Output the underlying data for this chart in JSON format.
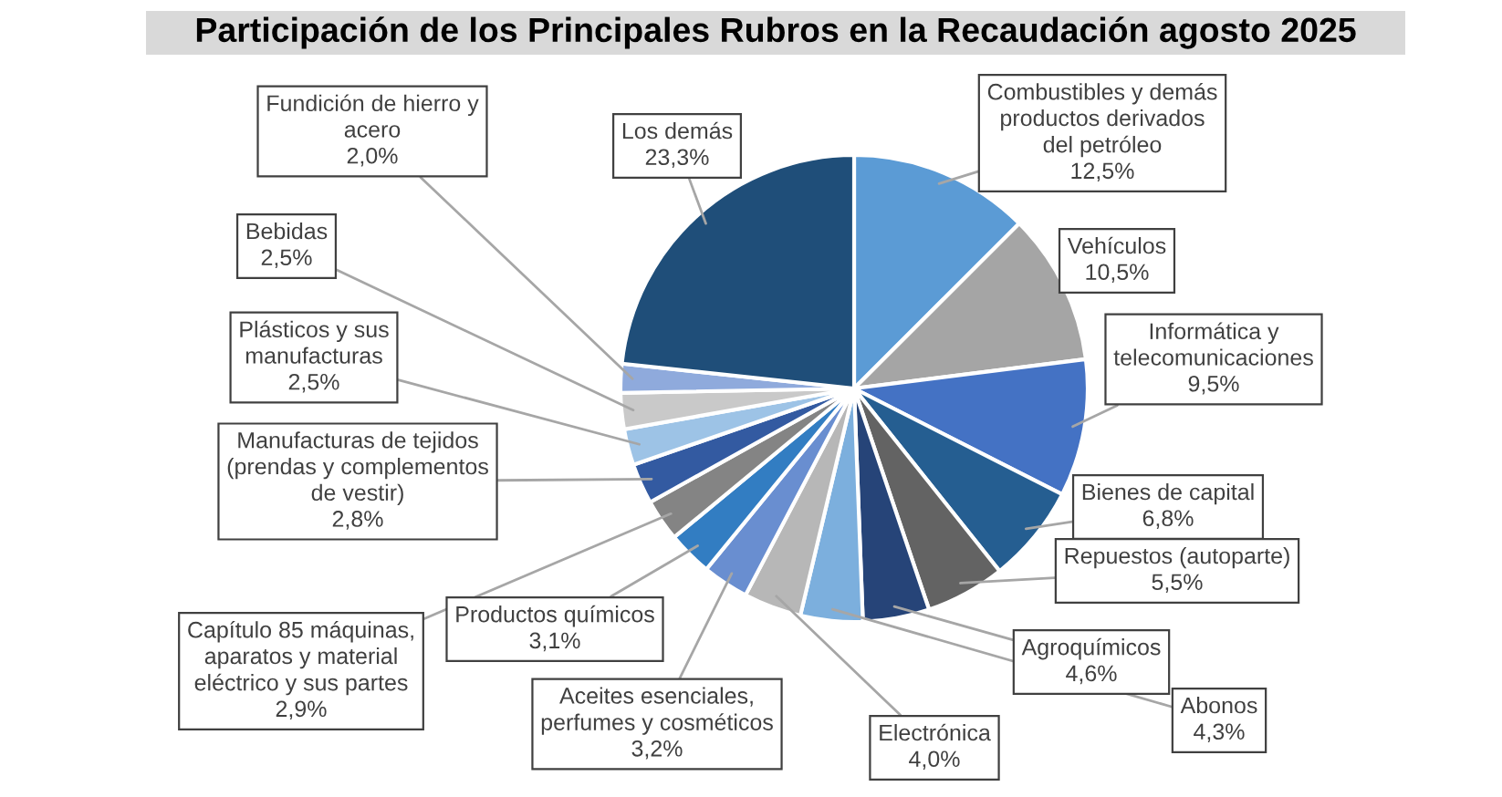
{
  "chart_data": {
    "type": "pie",
    "title": "Participación de los Principales Rubros en la Recaudación agosto 2025",
    "categories": [
      "Combustibles y demás\nproductos derivados\ndel petróleo",
      "Vehículos",
      "Informática y\ntelecomunicaciones",
      "Bienes de capital",
      "Repuestos (autoparte)",
      "Agroquímicos",
      "Abonos",
      "Electrónica",
      "Aceites esenciales,\nperfumes y cosméticos",
      "Productos químicos",
      "Capítulo 85 máquinas,\naparatos y material\neléctrico y sus partes",
      "Manufacturas de tejidos\n(prendas y complementos\nde vestir)",
      "Plásticos y sus\nmanufacturas",
      "Bebidas",
      "Fundición de hierro y\nacero",
      "Los demás"
    ],
    "values": [
      12.5,
      10.5,
      9.5,
      6.8,
      5.5,
      4.6,
      4.3,
      4.0,
      3.2,
      3.1,
      2.9,
      2.8,
      2.5,
      2.5,
      2.0,
      23.3
    ],
    "value_labels": [
      "12,5%",
      "10,5%",
      "9,5%",
      "6,8%",
      "5,5%",
      "4,6%",
      "4,3%",
      "4,0%",
      "3,2%",
      "3,1%",
      "2,9%",
      "2,8%",
      "2,5%",
      "2,5%",
      "2,0%",
      "23,3%"
    ],
    "colors": [
      "#5b9bd5",
      "#a5a5a5",
      "#4472c4",
      "#255e91",
      "#636363",
      "#264478",
      "#7cafdd",
      "#b7b7b7",
      "#698ed0",
      "#327dc2",
      "#848484",
      "#335aa1",
      "#9dc3e6",
      "#c9c9c9",
      "#8faadc",
      "#1f4e79"
    ],
    "legend": false
  }
}
